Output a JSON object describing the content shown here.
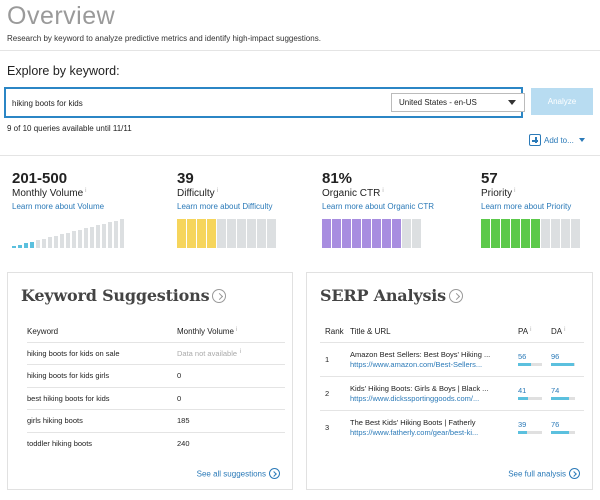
{
  "header": {
    "title": "Overview",
    "subtitle": "Research by keyword to analyze predictive metrics and identify high-impact suggestions."
  },
  "explore": {
    "label": "Explore by keyword:",
    "search_value": "hiking boots for kids",
    "locale": "United States - en-US",
    "analyze_label": "Analyze",
    "quota": "9 of 10 queries available until 11/11",
    "add_to_label": "Add to..."
  },
  "metrics": [
    {
      "value": "201-500",
      "name": "Monthly Volume",
      "link": "Learn more about Volume",
      "color": "#5bc0de",
      "fill_fraction": 0.2
    },
    {
      "value": "39",
      "name": "Difficulty",
      "link": "Learn more about Difficulty",
      "color": "#f6d55c",
      "fill_fraction": 0.4
    },
    {
      "value": "81%",
      "name": "Organic CTR",
      "link": "Learn more about Organic CTR",
      "color": "#a88de0",
      "fill_fraction": 0.8
    },
    {
      "value": "57",
      "name": "Priority",
      "link": "Learn more about Priority",
      "color": "#5cc94a",
      "fill_fraction": 0.6
    }
  ],
  "keyword_suggestions": {
    "title": "Keyword Suggestions",
    "col_keyword": "Keyword",
    "col_volume": "Monthly Volume",
    "rows": [
      {
        "keyword": "hiking boots for kids on sale",
        "volume": "Data not available"
      },
      {
        "keyword": "hiking boots for kids girls",
        "volume": "0"
      },
      {
        "keyword": "best hiking boots for kids",
        "volume": "0"
      },
      {
        "keyword": "girls hiking boots",
        "volume": "185"
      },
      {
        "keyword": "toddler hiking boots",
        "volume": "240"
      }
    ],
    "see_all": "See all suggestions"
  },
  "serp": {
    "title": "SERP Analysis",
    "col_rank": "Rank",
    "col_title": "Title & URL",
    "col_pa": "PA",
    "col_da": "DA",
    "rows": [
      {
        "rank": "1",
        "title": "Amazon Best Sellers: Best Boys' Hiking ...",
        "url": "https://www.amazon.com/Best-Sellers...",
        "pa": "56",
        "da": "96",
        "pa_frac": 0.56,
        "da_frac": 0.96
      },
      {
        "rank": "2",
        "title": "Kids' Hiking Boots: Girls & Boys | Black ...",
        "url": "https://www.dickssportinggoods.com/...",
        "pa": "41",
        "da": "74",
        "pa_frac": 0.41,
        "da_frac": 0.74
      },
      {
        "rank": "3",
        "title": "The Best Kids' Hiking Boots | Fatherly",
        "url": "https://www.fatherly.com/gear/best-ki...",
        "pa": "39",
        "da": "76",
        "pa_frac": 0.39,
        "da_frac": 0.76
      }
    ],
    "see_full": "See full analysis"
  }
}
